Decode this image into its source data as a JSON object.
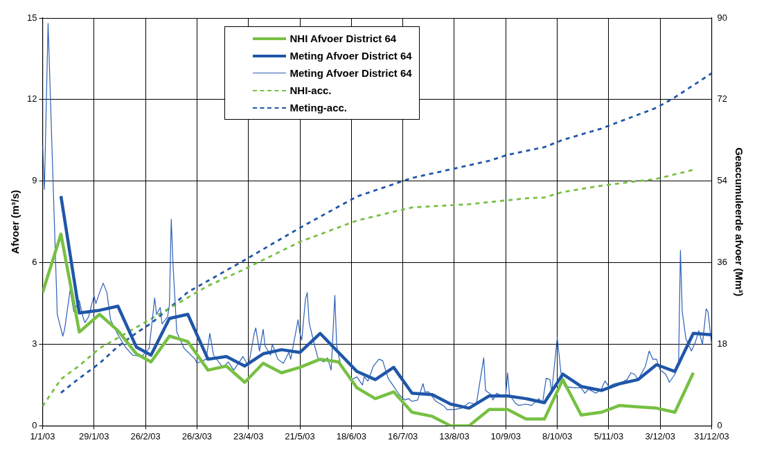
{
  "chart_data": {
    "type": "line",
    "xlabel": null,
    "ylabel": "Afvoer (m³/s)",
    "y2label": "Geaccumuleerde afvoer (Mm³)",
    "xlim": [
      "2003-01-01",
      "2003-12-31"
    ],
    "xticks": [
      {
        "value": "2003-01-01",
        "label": "1/1/03"
      },
      {
        "value": "2003-01-29",
        "label": "29/1/03"
      },
      {
        "value": "2003-02-26",
        "label": "26/2/03"
      },
      {
        "value": "2003-03-26",
        "label": "26/3/03"
      },
      {
        "value": "2003-04-23",
        "label": "23/4/03"
      },
      {
        "value": "2003-05-21",
        "label": "21/5/03"
      },
      {
        "value": "2003-06-18",
        "label": "18/6/03"
      },
      {
        "value": "2003-07-16",
        "label": "16/7/03"
      },
      {
        "value": "2003-08-13",
        "label": "13/8/03"
      },
      {
        "value": "2003-09-10",
        "label": "10/9/03"
      },
      {
        "value": "2003-10-08",
        "label": "8/10/03"
      },
      {
        "value": "2003-11-05",
        "label": "5/11/03"
      },
      {
        "value": "2003-12-03",
        "label": "3/12/03"
      },
      {
        "value": "2003-12-31",
        "label": "31/12/03"
      }
    ],
    "ylim": [
      0,
      15
    ],
    "yticks": [
      0,
      3,
      6,
      9,
      12,
      15
    ],
    "y2lim": [
      0,
      90
    ],
    "y2ticks": [
      0,
      18,
      36,
      54,
      72,
      90
    ],
    "grid": true,
    "legend": "top",
    "marker": "none",
    "series": [
      {
        "name": "NHI Afvoer District 64",
        "color": "#77c043",
        "x": [
          "2003-01-01",
          "2003-01-11",
          "2003-01-21",
          "2003-02-01",
          "2003-02-11",
          "2003-02-21",
          "2003-03-01",
          "2003-03-11",
          "2003-03-21",
          "2003-04-01",
          "2003-04-11",
          "2003-04-21",
          "2003-05-01",
          "2003-05-11",
          "2003-05-21",
          "2003-06-01",
          "2003-06-11",
          "2003-06-21",
          "2003-07-01",
          "2003-07-11",
          "2003-07-21",
          "2003-08-01",
          "2003-08-11",
          "2003-08-21",
          "2003-09-01",
          "2003-09-11",
          "2003-09-21",
          "2003-10-01",
          "2003-10-11",
          "2003-10-21",
          "2003-11-01",
          "2003-11-11",
          "2003-11-21",
          "2003-12-01",
          "2003-12-11",
          "2003-12-21"
        ],
        "values": [
          4.9,
          7.05,
          3.45,
          4.1,
          3.5,
          2.65,
          2.35,
          3.3,
          3.1,
          2.05,
          2.2,
          1.6,
          2.3,
          1.95,
          2.15,
          2.45,
          2.35,
          1.4,
          1.0,
          1.25,
          0.5,
          0.35,
          0.0,
          0.0,
          0.6,
          0.6,
          0.25,
          0.25,
          1.7,
          0.4,
          0.5,
          0.75,
          0.7,
          0.65,
          0.5,
          1.95
        ]
      },
      {
        "name": "Meting Afvoer District 64",
        "color": "#1f56a8",
        "x": [
          "2003-01-11",
          "2003-01-21",
          "2003-02-01",
          "2003-02-11",
          "2003-02-21",
          "2003-03-01",
          "2003-03-11",
          "2003-03-21",
          "2003-04-01",
          "2003-04-11",
          "2003-04-21",
          "2003-05-01",
          "2003-05-11",
          "2003-05-21",
          "2003-06-01",
          "2003-06-11",
          "2003-06-21",
          "2003-07-01",
          "2003-07-11",
          "2003-07-21",
          "2003-08-01",
          "2003-08-11",
          "2003-08-21",
          "2003-09-01",
          "2003-09-11",
          "2003-09-21",
          "2003-10-01",
          "2003-10-11",
          "2003-10-21",
          "2003-11-01",
          "2003-11-11",
          "2003-11-21",
          "2003-12-01",
          "2003-12-11",
          "2003-12-21",
          "2003-12-31"
        ],
        "values": [
          8.45,
          4.15,
          4.25,
          4.4,
          2.9,
          2.6,
          3.95,
          4.1,
          2.45,
          2.55,
          2.2,
          2.65,
          2.8,
          2.7,
          3.4,
          2.7,
          2.0,
          1.7,
          2.15,
          1.2,
          1.15,
          0.8,
          0.65,
          1.1,
          1.1,
          1.0,
          0.85,
          1.9,
          1.45,
          1.3,
          1.55,
          1.7,
          2.25,
          2.0,
          3.4,
          3.35
        ]
      },
      {
        "name": "Meting Afvoer District 64",
        "color": "#2a5fb5",
        "x": [
          "2003-01-01",
          "2003-01-02",
          "2003-01-04",
          "2003-01-09",
          "2003-01-12",
          "2003-01-13",
          "2003-01-16",
          "2003-01-18",
          "2003-01-21",
          "2003-01-23",
          "2003-01-24",
          "2003-01-26",
          "2003-01-29",
          "2003-01-30",
          "2003-02-01",
          "2003-02-03",
          "2003-02-05",
          "2003-02-07",
          "2003-02-11",
          "2003-02-15",
          "2003-02-19",
          "2003-02-24",
          "2003-02-28",
          "2003-03-03",
          "2003-03-04",
          "2003-03-06",
          "2003-03-07",
          "2003-03-10",
          "2003-03-11",
          "2003-03-12",
          "2003-03-13",
          "2003-03-15",
          "2003-03-19",
          "2003-03-25",
          "2003-03-26",
          "2003-03-31",
          "2003-04-02",
          "2003-04-04",
          "2003-04-09",
          "2003-04-12",
          "2003-04-15",
          "2003-04-18",
          "2003-04-20",
          "2003-04-23",
          "2003-04-26",
          "2003-04-27",
          "2003-04-29",
          "2003-05-01",
          "2003-05-02",
          "2003-05-05",
          "2003-05-06",
          "2003-05-09",
          "2003-05-12",
          "2003-05-15",
          "2003-05-16",
          "2003-05-20",
          "2003-05-21",
          "2003-05-22",
          "2003-05-24",
          "2003-05-25",
          "2003-05-26",
          "2003-05-29",
          "2003-05-31",
          "2003-06-03",
          "2003-06-05",
          "2003-06-07",
          "2003-06-09",
          "2003-06-10",
          "2003-06-12",
          "2003-06-15",
          "2003-06-18",
          "2003-06-21",
          "2003-06-24",
          "2003-06-25",
          "2003-06-27",
          "2003-06-30",
          "2003-07-03",
          "2003-07-05",
          "2003-07-08",
          "2003-07-12",
          "2003-07-14",
          "2003-07-17",
          "2003-07-19",
          "2003-07-21",
          "2003-07-24",
          "2003-07-27",
          "2003-07-28",
          "2003-07-30",
          "2003-08-03",
          "2003-08-07",
          "2003-08-09",
          "2003-08-13",
          "2003-08-17",
          "2003-08-21",
          "2003-08-25",
          "2003-08-29",
          "2003-08-30",
          "2003-09-02",
          "2003-09-03",
          "2003-09-05",
          "2003-09-08",
          "2003-09-10",
          "2003-09-11",
          "2003-09-12",
          "2003-09-15",
          "2003-09-17",
          "2003-09-21",
          "2003-09-24",
          "2003-09-28",
          "2003-09-30",
          "2003-10-02",
          "2003-10-04",
          "2003-10-05",
          "2003-10-08",
          "2003-10-10",
          "2003-10-12",
          "2003-10-17",
          "2003-10-21",
          "2003-10-23",
          "2003-10-25",
          "2003-10-29",
          "2003-11-01",
          "2003-11-03",
          "2003-11-05",
          "2003-11-08",
          "2003-11-12",
          "2003-11-15",
          "2003-11-17",
          "2003-11-19",
          "2003-11-21",
          "2003-11-25",
          "2003-11-27",
          "2003-11-29",
          "2003-12-01",
          "2003-12-03",
          "2003-12-06",
          "2003-12-08",
          "2003-12-11",
          "2003-12-13",
          "2003-12-14",
          "2003-12-15",
          "2003-12-17",
          "2003-12-20",
          "2003-12-22",
          "2003-12-24",
          "2003-12-26",
          "2003-12-28",
          "2003-12-29",
          "2003-12-31"
        ],
        "values": [
          10.3,
          8.7,
          14.8,
          4.1,
          3.3,
          3.55,
          5.0,
          4.2,
          4.6,
          4.0,
          3.8,
          4.0,
          4.8,
          4.5,
          4.9,
          5.25,
          4.9,
          3.9,
          3.35,
          2.9,
          2.6,
          2.55,
          2.85,
          4.7,
          4.1,
          4.35,
          3.75,
          4.0,
          4.45,
          7.6,
          5.9,
          3.45,
          2.85,
          2.45,
          2.3,
          2.45,
          3.4,
          2.6,
          2.15,
          2.35,
          2.05,
          2.35,
          2.55,
          2.2,
          3.35,
          3.6,
          2.75,
          3.55,
          2.95,
          2.6,
          3.0,
          2.45,
          2.3,
          2.7,
          2.45,
          3.9,
          3.4,
          3.15,
          4.65,
          4.9,
          3.8,
          2.95,
          2.45,
          2.35,
          2.5,
          2.05,
          4.8,
          2.95,
          2.3,
          1.95,
          1.7,
          1.8,
          1.5,
          1.8,
          1.65,
          2.2,
          2.45,
          2.4,
          1.75,
          1.35,
          1.15,
          0.95,
          1.0,
          0.9,
          0.95,
          1.55,
          1.25,
          1.25,
          0.9,
          0.75,
          0.6,
          0.6,
          0.65,
          0.85,
          0.8,
          2.5,
          1.3,
          1.15,
          0.95,
          1.2,
          1.1,
          1.15,
          1.95,
          1.15,
          0.85,
          0.75,
          0.8,
          0.75,
          1.0,
          0.85,
          1.75,
          1.7,
          1.25,
          3.25,
          1.95,
          1.45,
          1.4,
          1.4,
          1.2,
          1.35,
          1.2,
          1.35,
          1.65,
          1.45,
          1.55,
          1.6,
          1.7,
          1.95,
          1.9,
          1.7,
          2.2,
          2.75,
          2.45,
          2.45,
          2.05,
          1.9,
          1.6,
          1.9,
          2.25,
          6.45,
          4.2,
          3.2,
          2.75,
          3.05,
          3.5,
          3.0,
          4.3,
          4.2,
          3.0
        ]
      },
      {
        "name": "NHI-acc.",
        "color": "#77c043",
        "axis": "y2",
        "line_style": "dashed",
        "x": [
          "2003-01-01",
          "2003-01-11",
          "2003-01-21",
          "2003-02-01",
          "2003-03-01",
          "2003-04-01",
          "2003-04-21",
          "2003-05-21",
          "2003-06-21",
          "2003-07-21",
          "2003-08-21",
          "2003-09-21",
          "2003-10-01",
          "2003-10-11",
          "2003-11-01",
          "2003-12-01",
          "2003-12-21"
        ],
        "values": [
          4.3,
          10.3,
          13.3,
          17.1,
          23.6,
          30.9,
          34.6,
          40.6,
          45.3,
          48.2,
          48.9,
          50.2,
          50.4,
          51.6,
          53.0,
          54.5,
          56.5
        ]
      },
      {
        "name": "Meting-acc.",
        "color": "#1f56a8",
        "axis": "y2",
        "line_style": "dashed",
        "x": [
          "2003-01-11",
          "2003-01-21",
          "2003-02-01",
          "2003-02-11",
          "2003-02-21",
          "2003-03-01",
          "2003-03-11",
          "2003-03-21",
          "2003-04-01",
          "2003-04-21",
          "2003-05-21",
          "2003-06-21",
          "2003-07-21",
          "2003-08-21",
          "2003-09-01",
          "2003-09-11",
          "2003-10-01",
          "2003-10-11",
          "2003-11-01",
          "2003-12-01",
          "2003-12-11",
          "2003-12-31"
        ],
        "values": [
          7.3,
          10.5,
          13.8,
          17.5,
          20.5,
          22.6,
          26.0,
          29.5,
          32.0,
          36.6,
          43.7,
          50.6,
          54.7,
          57.5,
          58.5,
          59.8,
          61.5,
          63.1,
          65.6,
          70.2,
          72.5,
          77.8
        ]
      }
    ]
  }
}
